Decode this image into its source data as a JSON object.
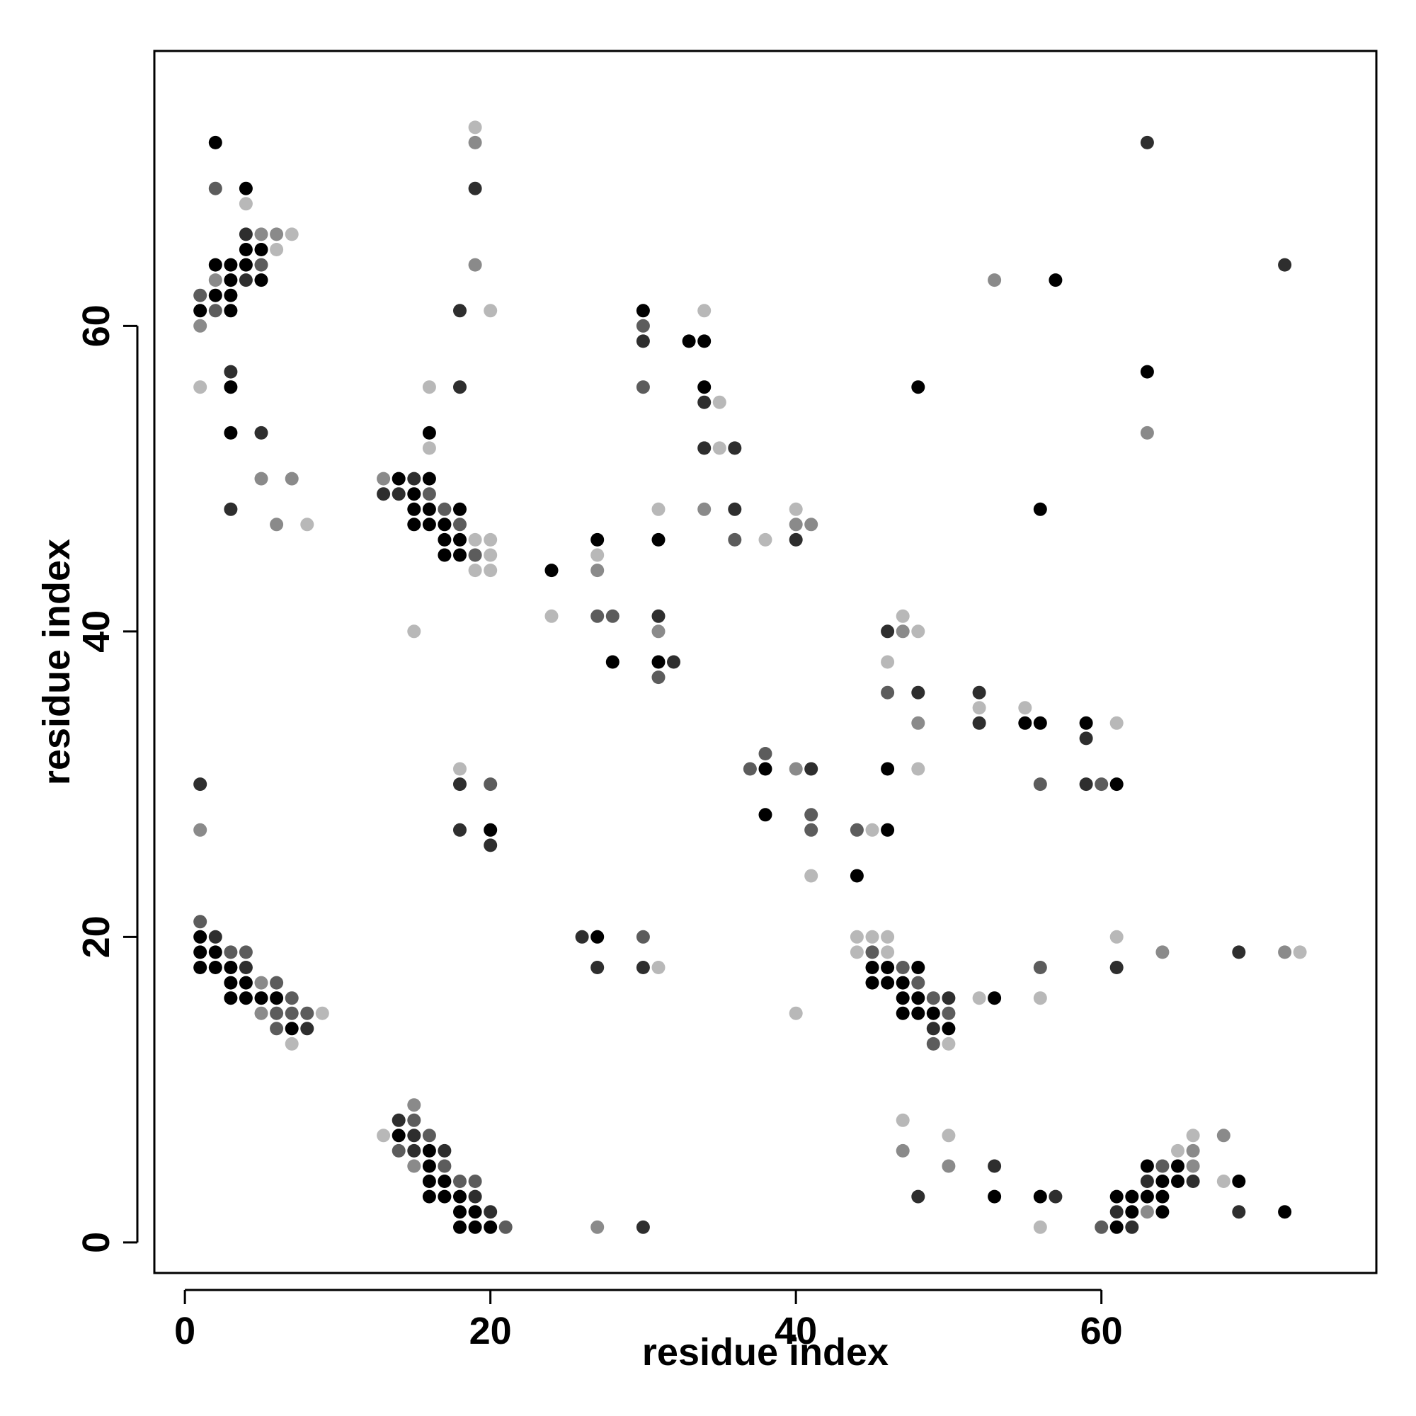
{
  "chart_data": {
    "type": "scatter",
    "title": "",
    "xlabel": "residue index",
    "ylabel": "residue index",
    "xlim": [
      -2,
      78
    ],
    "ylim": [
      -2,
      78
    ],
    "x_ticks": [
      0,
      20,
      40,
      60
    ],
    "y_ticks": [
      0,
      20,
      40,
      60
    ],
    "grid": false,
    "legend": "none",
    "point_color_scale": [
      "#000000",
      "#b8b8b8"
    ],
    "points": [
      [
        2,
        72,
        0
      ],
      [
        2,
        69,
        2
      ],
      [
        4,
        69,
        0
      ],
      [
        4,
        68,
        4
      ],
      [
        4,
        66,
        1
      ],
      [
        5,
        66,
        3
      ],
      [
        6,
        66,
        3
      ],
      [
        7,
        66,
        4
      ],
      [
        4,
        65,
        0
      ],
      [
        5,
        65,
        0
      ],
      [
        6,
        65,
        4
      ],
      [
        2,
        64,
        0
      ],
      [
        3,
        64,
        0
      ],
      [
        4,
        64,
        0
      ],
      [
        5,
        64,
        2
      ],
      [
        2,
        63,
        3
      ],
      [
        3,
        63,
        0
      ],
      [
        4,
        63,
        1
      ],
      [
        5,
        63,
        0
      ],
      [
        1,
        62,
        2
      ],
      [
        2,
        62,
        0
      ],
      [
        3,
        62,
        0
      ],
      [
        1,
        61,
        0
      ],
      [
        2,
        61,
        2
      ],
      [
        3,
        61,
        0
      ],
      [
        1,
        60,
        3
      ],
      [
        3,
        57,
        1
      ],
      [
        1,
        56,
        4
      ],
      [
        3,
        56,
        0
      ],
      [
        3,
        53,
        0
      ],
      [
        5,
        53,
        1
      ],
      [
        5,
        50,
        3
      ],
      [
        7,
        50,
        3
      ],
      [
        3,
        48,
        1
      ],
      [
        6,
        47,
        3
      ],
      [
        8,
        47,
        4
      ],
      [
        19,
        73,
        4
      ],
      [
        19,
        72,
        3
      ],
      [
        19,
        69,
        1
      ],
      [
        19,
        64,
        3
      ],
      [
        18,
        61,
        1
      ],
      [
        20,
        61,
        4
      ],
      [
        16,
        56,
        4
      ],
      [
        18,
        56,
        1
      ],
      [
        16,
        53,
        0
      ],
      [
        16,
        52,
        4
      ],
      [
        13,
        50,
        3
      ],
      [
        14,
        50,
        0
      ],
      [
        15,
        50,
        1
      ],
      [
        16,
        50,
        0
      ],
      [
        13,
        49,
        1
      ],
      [
        14,
        49,
        1
      ],
      [
        15,
        49,
        0
      ],
      [
        16,
        49,
        2
      ],
      [
        15,
        48,
        0
      ],
      [
        16,
        48,
        0
      ],
      [
        17,
        48,
        2
      ],
      [
        18,
        48,
        0
      ],
      [
        15,
        47,
        0
      ],
      [
        16,
        47,
        0
      ],
      [
        17,
        47,
        0
      ],
      [
        18,
        47,
        2
      ],
      [
        17,
        46,
        0
      ],
      [
        18,
        46,
        0
      ],
      [
        19,
        46,
        4
      ],
      [
        20,
        46,
        4
      ],
      [
        17,
        45,
        0
      ],
      [
        18,
        45,
        0
      ],
      [
        19,
        45,
        2
      ],
      [
        20,
        45,
        4
      ],
      [
        19,
        44,
        4
      ],
      [
        20,
        44,
        4
      ],
      [
        15,
        40,
        4
      ],
      [
        30,
        61,
        0
      ],
      [
        30,
        60,
        2
      ],
      [
        30,
        59,
        1
      ],
      [
        34,
        61,
        4
      ],
      [
        33,
        59,
        0
      ],
      [
        34,
        59,
        0
      ],
      [
        30,
        56,
        2
      ],
      [
        34,
        56,
        0
      ],
      [
        34,
        55,
        1
      ],
      [
        35,
        55,
        4
      ],
      [
        34,
        52,
        1
      ],
      [
        35,
        52,
        4
      ],
      [
        36,
        52,
        1
      ],
      [
        31,
        48,
        4
      ],
      [
        34,
        48,
        3
      ],
      [
        36,
        48,
        1
      ],
      [
        27,
        46,
        0
      ],
      [
        31,
        46,
        0
      ],
      [
        36,
        46,
        2
      ],
      [
        38,
        46,
        4
      ],
      [
        40,
        46,
        1
      ],
      [
        40,
        48,
        4
      ],
      [
        40,
        47,
        3
      ],
      [
        41,
        47,
        3
      ],
      [
        27,
        45,
        4
      ],
      [
        24,
        44,
        0
      ],
      [
        27,
        44,
        3
      ],
      [
        24,
        41,
        4
      ],
      [
        27,
        41,
        2
      ],
      [
        28,
        41,
        2
      ],
      [
        31,
        41,
        1
      ],
      [
        31,
        40,
        3
      ],
      [
        28,
        38,
        0
      ],
      [
        31,
        38,
        0
      ],
      [
        32,
        38,
        1
      ],
      [
        31,
        37,
        2
      ],
      [
        63,
        72,
        1
      ],
      [
        53,
        63,
        3
      ],
      [
        57,
        63,
        0
      ],
      [
        72,
        64,
        1
      ],
      [
        63,
        57,
        0
      ],
      [
        48,
        56,
        0
      ],
      [
        63,
        53,
        3
      ],
      [
        56,
        48,
        0
      ],
      [
        47,
        41,
        4
      ],
      [
        46,
        40,
        1
      ],
      [
        47,
        40,
        3
      ],
      [
        48,
        40,
        4
      ],
      [
        46,
        38,
        4
      ],
      [
        46,
        36,
        2
      ],
      [
        48,
        36,
        1
      ],
      [
        52,
        36,
        1
      ],
      [
        52,
        35,
        4
      ],
      [
        55,
        35,
        4
      ],
      [
        48,
        34,
        3
      ],
      [
        52,
        34,
        1
      ],
      [
        55,
        34,
        0
      ],
      [
        56,
        34,
        0
      ],
      [
        59,
        34,
        0
      ],
      [
        61,
        34,
        4
      ],
      [
        59,
        33,
        1
      ],
      [
        56,
        30,
        2
      ],
      [
        59,
        30,
        1
      ],
      [
        60,
        30,
        2
      ],
      [
        61,
        30,
        0
      ],
      [
        38,
        32,
        2
      ],
      [
        37,
        31,
        2
      ],
      [
        38,
        31,
        0
      ],
      [
        40,
        31,
        3
      ],
      [
        41,
        31,
        1
      ],
      [
        46,
        31,
        0
      ],
      [
        48,
        31,
        4
      ],
      [
        38,
        28,
        0
      ],
      [
        41,
        28,
        2
      ],
      [
        41,
        27,
        2
      ],
      [
        44,
        27,
        2
      ],
      [
        45,
        27,
        4
      ],
      [
        46,
        27,
        0
      ],
      [
        41,
        24,
        4
      ],
      [
        44,
        24,
        0
      ],
      [
        1,
        30,
        1
      ],
      [
        1,
        27,
        3
      ],
      [
        18,
        31,
        4
      ],
      [
        18,
        30,
        1
      ],
      [
        20,
        30,
        2
      ],
      [
        18,
        27,
        1
      ],
      [
        20,
        27,
        0
      ],
      [
        20,
        26,
        1
      ],
      [
        1,
        21,
        2
      ],
      [
        1,
        20,
        0
      ],
      [
        2,
        20,
        1
      ],
      [
        1,
        19,
        0
      ],
      [
        2,
        19,
        0
      ],
      [
        3,
        19,
        2
      ],
      [
        4,
        19,
        2
      ],
      [
        1,
        18,
        0
      ],
      [
        2,
        18,
        0
      ],
      [
        3,
        18,
        0
      ],
      [
        4,
        18,
        1
      ],
      [
        3,
        17,
        0
      ],
      [
        4,
        17,
        0
      ],
      [
        5,
        17,
        3
      ],
      [
        6,
        17,
        2
      ],
      [
        3,
        16,
        0
      ],
      [
        4,
        16,
        0
      ],
      [
        5,
        16,
        0
      ],
      [
        6,
        16,
        0
      ],
      [
        7,
        16,
        2
      ],
      [
        5,
        15,
        3
      ],
      [
        6,
        15,
        2
      ],
      [
        7,
        15,
        2
      ],
      [
        8,
        15,
        2
      ],
      [
        9,
        15,
        4
      ],
      [
        6,
        14,
        2
      ],
      [
        7,
        14,
        0
      ],
      [
        8,
        14,
        1
      ],
      [
        7,
        13,
        4
      ],
      [
        26,
        20,
        1
      ],
      [
        27,
        20,
        0
      ],
      [
        30,
        20,
        2
      ],
      [
        27,
        18,
        1
      ],
      [
        30,
        18,
        1
      ],
      [
        31,
        18,
        4
      ],
      [
        44,
        20,
        4
      ],
      [
        45,
        20,
        4
      ],
      [
        46,
        20,
        4
      ],
      [
        44,
        19,
        4
      ],
      [
        45,
        19,
        2
      ],
      [
        46,
        19,
        4
      ],
      [
        45,
        18,
        0
      ],
      [
        46,
        18,
        0
      ],
      [
        47,
        18,
        2
      ],
      [
        48,
        18,
        0
      ],
      [
        45,
        17,
        0
      ],
      [
        46,
        17,
        0
      ],
      [
        47,
        17,
        0
      ],
      [
        48,
        17,
        2
      ],
      [
        47,
        16,
        0
      ],
      [
        48,
        16,
        0
      ],
      [
        49,
        16,
        2
      ],
      [
        50,
        16,
        1
      ],
      [
        47,
        15,
        0
      ],
      [
        48,
        15,
        0
      ],
      [
        49,
        15,
        0
      ],
      [
        50,
        15,
        2
      ],
      [
        49,
        14,
        1
      ],
      [
        50,
        14,
        0
      ],
      [
        49,
        13,
        2
      ],
      [
        50,
        13,
        4
      ],
      [
        40,
        15,
        4
      ],
      [
        52,
        16,
        4
      ],
      [
        53,
        16,
        0
      ],
      [
        56,
        18,
        2
      ],
      [
        56,
        16,
        4
      ],
      [
        61,
        20,
        4
      ],
      [
        61,
        18,
        1
      ],
      [
        64,
        19,
        3
      ],
      [
        69,
        19,
        1
      ],
      [
        72,
        19,
        3
      ],
      [
        73,
        19,
        4
      ],
      [
        15,
        9,
        3
      ],
      [
        14,
        8,
        1
      ],
      [
        15,
        8,
        2
      ],
      [
        13,
        7,
        4
      ],
      [
        14,
        7,
        0
      ],
      [
        15,
        7,
        1
      ],
      [
        16,
        7,
        2
      ],
      [
        14,
        6,
        2
      ],
      [
        15,
        6,
        1
      ],
      [
        16,
        6,
        0
      ],
      [
        17,
        6,
        1
      ],
      [
        15,
        5,
        3
      ],
      [
        16,
        5,
        0
      ],
      [
        17,
        5,
        2
      ],
      [
        16,
        4,
        0
      ],
      [
        17,
        4,
        0
      ],
      [
        18,
        4,
        2
      ],
      [
        19,
        4,
        2
      ],
      [
        16,
        3,
        0
      ],
      [
        17,
        3,
        0
      ],
      [
        18,
        3,
        0
      ],
      [
        19,
        3,
        1
      ],
      [
        18,
        2,
        0
      ],
      [
        19,
        2,
        0
      ],
      [
        20,
        2,
        1
      ],
      [
        18,
        1,
        0
      ],
      [
        19,
        1,
        0
      ],
      [
        20,
        1,
        0
      ],
      [
        21,
        1,
        2
      ],
      [
        27,
        1,
        3
      ],
      [
        30,
        1,
        1
      ],
      [
        47,
        8,
        4
      ],
      [
        50,
        7,
        4
      ],
      [
        47,
        6,
        3
      ],
      [
        50,
        5,
        3
      ],
      [
        53,
        5,
        1
      ],
      [
        48,
        3,
        1
      ],
      [
        53,
        3,
        0
      ],
      [
        56,
        3,
        0
      ],
      [
        57,
        3,
        1
      ],
      [
        56,
        1,
        4
      ],
      [
        68,
        7,
        3
      ],
      [
        66,
        7,
        4
      ],
      [
        65,
        6,
        4
      ],
      [
        66,
        6,
        3
      ],
      [
        63,
        5,
        0
      ],
      [
        64,
        5,
        2
      ],
      [
        65,
        5,
        0
      ],
      [
        66,
        5,
        3
      ],
      [
        63,
        4,
        1
      ],
      [
        64,
        4,
        0
      ],
      [
        65,
        4,
        0
      ],
      [
        66,
        4,
        1
      ],
      [
        68,
        4,
        4
      ],
      [
        69,
        4,
        0
      ],
      [
        61,
        3,
        0
      ],
      [
        62,
        3,
        0
      ],
      [
        63,
        3,
        0
      ],
      [
        64,
        3,
        0
      ],
      [
        61,
        2,
        1
      ],
      [
        62,
        2,
        0
      ],
      [
        63,
        2,
        3
      ],
      [
        64,
        2,
        0
      ],
      [
        69,
        2,
        1
      ],
      [
        72,
        2,
        0
      ],
      [
        60,
        1,
        2
      ],
      [
        61,
        1,
        0
      ],
      [
        62,
        1,
        1
      ]
    ]
  }
}
